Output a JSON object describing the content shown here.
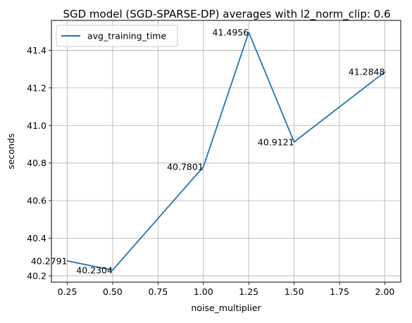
{
  "chart_data": {
    "type": "line",
    "title": "SGD model (SGD-SPARSE-DP) averages with l2_norm_clip: 0.6",
    "xlabel": "noise_multiplier",
    "ylabel": "seconds",
    "xlim": [
      0.1625,
      2.0875
    ],
    "ylim": [
      40.166,
      41.559
    ],
    "xticks": [
      0.25,
      0.5,
      0.75,
      1.0,
      1.25,
      1.5,
      1.75,
      2.0
    ],
    "xtick_labels": [
      "0.25",
      "0.50",
      "0.75",
      "1.00",
      "1.25",
      "1.50",
      "1.75",
      "2.00"
    ],
    "yticks": [
      40.2,
      40.4,
      40.6,
      40.8,
      41.0,
      41.2,
      41.4
    ],
    "ytick_labels": [
      "40.2",
      "40.4",
      "40.6",
      "40.8",
      "41.0",
      "41.2",
      "41.4"
    ],
    "grid": true,
    "legend_position": "top-left",
    "series": [
      {
        "name": "avg_training_time",
        "color": "#1f77b4",
        "x": [
          0.25,
          0.5,
          1.0,
          1.25,
          1.5,
          2.0
        ],
        "y": [
          40.2791,
          40.2304,
          40.7801,
          41.4956,
          40.9121,
          41.2848
        ],
        "labels": [
          "40.2791",
          "40.2304",
          "40.7801",
          "41.4956",
          "40.9121",
          "41.2848"
        ]
      }
    ]
  }
}
